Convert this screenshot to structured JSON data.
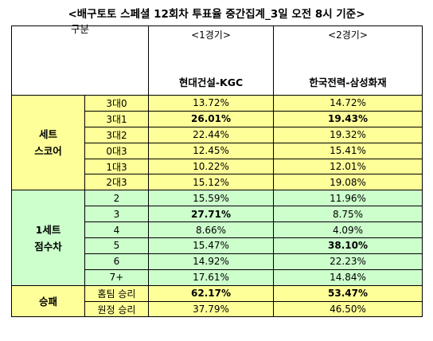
{
  "title": "<배구토토 스페셜 12회차 투표율 중간집계_3일 오전 8시 기준>",
  "header": {
    "group_label": "구분",
    "games": [
      {
        "label": "<1경기>",
        "teams": "현대건설-KGC"
      },
      {
        "label": "<2경기>",
        "teams": "한국전력-삼성화재"
      }
    ]
  },
  "sections": [
    {
      "name_lines": [
        "세트",
        "스코어"
      ],
      "color": "#ffff99",
      "rows": [
        {
          "label": "3대0",
          "g1": "13.72%",
          "g2": "14.72%",
          "g1_bold": false,
          "g2_bold": false
        },
        {
          "label": "3대1",
          "g1": "26.01%",
          "g2": "19.43%",
          "g1_bold": true,
          "g2_bold": true
        },
        {
          "label": "3대2",
          "g1": "22.44%",
          "g2": "19.32%",
          "g1_bold": false,
          "g2_bold": false
        },
        {
          "label": "0대3",
          "g1": "12.45%",
          "g2": "15.41%",
          "g1_bold": false,
          "g2_bold": false
        },
        {
          "label": "1대3",
          "g1": "10.22%",
          "g2": "12.01%",
          "g1_bold": false,
          "g2_bold": false
        },
        {
          "label": "2대3",
          "g1": "15.12%",
          "g2": "19.08%",
          "g1_bold": false,
          "g2_bold": false
        }
      ]
    },
    {
      "name_lines": [
        "1세트",
        "점수차"
      ],
      "color": "#ccffcc",
      "rows": [
        {
          "label": "2",
          "g1": "15.59%",
          "g2": "11.96%",
          "g1_bold": false,
          "g2_bold": false
        },
        {
          "label": "3",
          "g1": "27.71%",
          "g2": "8.75%",
          "g1_bold": true,
          "g2_bold": false
        },
        {
          "label": "4",
          "g1": "8.66%",
          "g2": "4.09%",
          "g1_bold": false,
          "g2_bold": false
        },
        {
          "label": "5",
          "g1": "15.47%",
          "g2": "38.10%",
          "g1_bold": false,
          "g2_bold": true
        },
        {
          "label": "6",
          "g1": "14.92%",
          "g2": "22.23%",
          "g1_bold": false,
          "g2_bold": false
        },
        {
          "label": "7+",
          "g1": "17.61%",
          "g2": "14.84%",
          "g1_bold": false,
          "g2_bold": false
        }
      ]
    },
    {
      "name_lines": [
        "승패"
      ],
      "color": "#ffff99",
      "rows": [
        {
          "label": "홈팀 승리",
          "g1": "62.17%",
          "g2": "53.47%",
          "g1_bold": true,
          "g2_bold": true
        },
        {
          "label": "원정 승리",
          "g1": "37.79%",
          "g2": "46.50%",
          "g1_bold": false,
          "g2_bold": false
        }
      ]
    }
  ]
}
